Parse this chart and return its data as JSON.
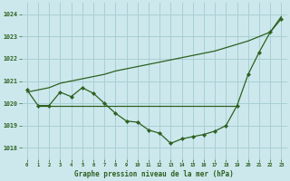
{
  "xlabel": "Graphe pression niveau de la mer (hPa)",
  "background_color": "#cce8ec",
  "grid_color": "#a8cfd4",
  "line_color": "#2d6020",
  "series1_x": [
    0,
    1,
    2,
    3,
    4,
    5,
    6,
    7,
    8,
    9,
    10,
    11,
    12,
    13,
    14,
    15,
    16,
    17,
    18,
    19,
    20,
    21,
    22,
    23
  ],
  "series1_y": [
    1020.6,
    1019.9,
    1019.9,
    1020.5,
    1020.3,
    1020.7,
    1020.45,
    1020.0,
    1019.55,
    1019.2,
    1019.15,
    1018.8,
    1018.65,
    1018.2,
    1018.4,
    1018.5,
    1018.6,
    1018.75,
    1019.0,
    1019.9,
    1021.3,
    1022.3,
    1023.2,
    1023.8
  ],
  "series2_x": [
    1,
    2,
    3,
    4,
    5,
    6,
    7,
    8,
    9,
    10,
    11,
    12,
    13,
    14,
    15,
    16,
    17,
    18,
    19
  ],
  "series2_y": [
    1019.9,
    1019.9,
    1019.9,
    1019.9,
    1019.9,
    1019.9,
    1019.9,
    1019.9,
    1019.9,
    1019.9,
    1019.9,
    1019.9,
    1019.9,
    1019.9,
    1019.9,
    1019.9,
    1019.9,
    1019.9,
    1019.9
  ],
  "series3_x": [
    0,
    1,
    2,
    3,
    4,
    5,
    6,
    7,
    8,
    9,
    10,
    11,
    12,
    13,
    14,
    15,
    16,
    17,
    18,
    19,
    20,
    21,
    22,
    23
  ],
  "series3_y": [
    1020.5,
    1020.6,
    1020.7,
    1020.9,
    1021.0,
    1021.1,
    1021.2,
    1021.3,
    1021.45,
    1021.55,
    1021.65,
    1021.75,
    1021.85,
    1021.95,
    1022.05,
    1022.15,
    1022.25,
    1022.35,
    1022.5,
    1022.65,
    1022.8,
    1023.0,
    1023.2,
    1023.9
  ],
  "ylim": [
    1017.5,
    1024.5
  ],
  "xlim": [
    -0.5,
    23.5
  ],
  "yticks": [
    1018,
    1019,
    1020,
    1021,
    1022,
    1023,
    1024
  ],
  "xticks": [
    0,
    1,
    2,
    3,
    4,
    5,
    6,
    7,
    8,
    9,
    10,
    11,
    12,
    13,
    14,
    15,
    16,
    17,
    18,
    19,
    20,
    21,
    22,
    23
  ]
}
